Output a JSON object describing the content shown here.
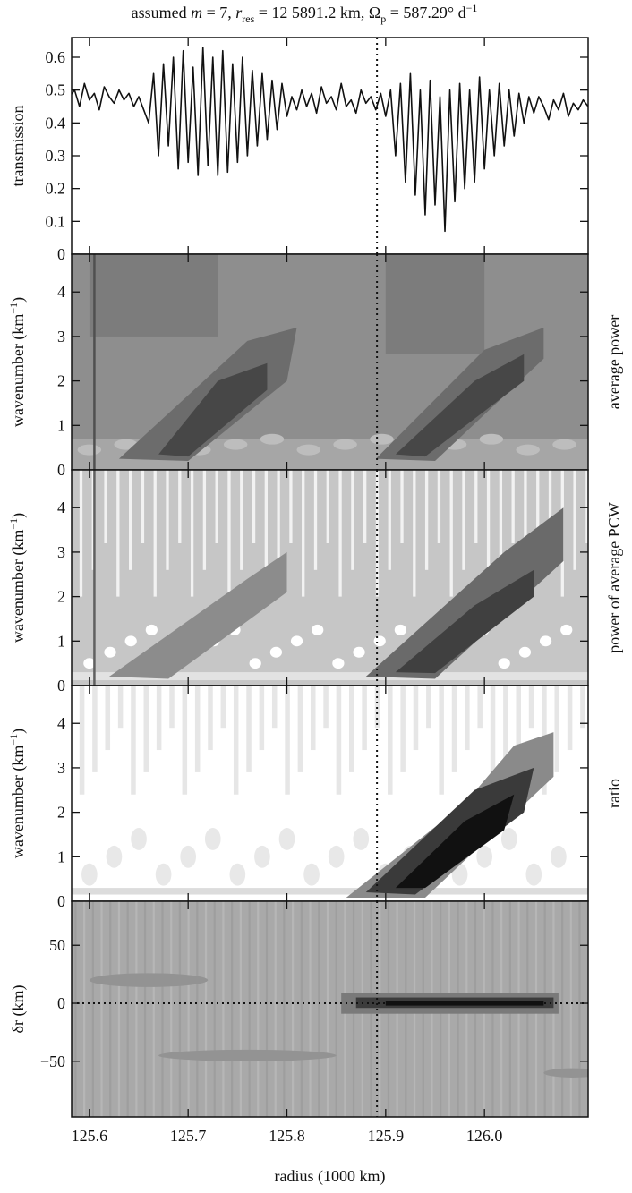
{
  "title": [
    "assumed ",
    "m",
    " = 7, ",
    "r",
    "res",
    " = 12 5891.2 km, Ω",
    "p",
    " = 587.29° d",
    "−1"
  ],
  "chart_data": [
    {
      "type": "line",
      "ylabel": "transmission",
      "ylim": [
        0,
        0.66
      ],
      "yticks": [
        0,
        0.1,
        0.2,
        0.3,
        0.4,
        0.5,
        0.6
      ],
      "vline": 125.8912,
      "color": "#111111",
      "x": [
        125.58,
        125.585,
        125.59,
        125.595,
        125.6,
        125.605,
        125.61,
        125.615,
        125.62,
        125.625,
        125.63,
        125.635,
        125.64,
        125.645,
        125.65,
        125.655,
        125.66,
        125.665,
        125.67,
        125.675,
        125.68,
        125.685,
        125.69,
        125.695,
        125.7,
        125.705,
        125.71,
        125.715,
        125.72,
        125.725,
        125.73,
        125.735,
        125.74,
        125.745,
        125.75,
        125.755,
        125.76,
        125.765,
        125.77,
        125.775,
        125.78,
        125.785,
        125.79,
        125.795,
        125.8,
        125.805,
        125.81,
        125.815,
        125.82,
        125.825,
        125.83,
        125.835,
        125.84,
        125.845,
        125.85,
        125.855,
        125.86,
        125.865,
        125.87,
        125.875,
        125.88,
        125.885,
        125.89,
        125.895,
        125.9,
        125.905,
        125.91,
        125.915,
        125.92,
        125.925,
        125.93,
        125.935,
        125.94,
        125.945,
        125.95,
        125.955,
        125.96,
        125.965,
        125.97,
        125.975,
        125.98,
        125.985,
        125.99,
        125.995,
        126.0,
        126.005,
        126.01,
        126.015,
        126.02,
        126.025,
        126.03,
        126.035,
        126.04,
        126.045,
        126.05,
        126.055,
        126.06,
        126.065,
        126.07,
        126.075,
        126.08,
        126.085,
        126.09,
        126.095,
        126.1,
        126.105
      ],
      "values": [
        0.48,
        0.5,
        0.45,
        0.52,
        0.47,
        0.49,
        0.44,
        0.51,
        0.48,
        0.46,
        0.5,
        0.47,
        0.49,
        0.45,
        0.48,
        0.44,
        0.4,
        0.55,
        0.3,
        0.58,
        0.33,
        0.6,
        0.26,
        0.62,
        0.28,
        0.57,
        0.24,
        0.63,
        0.27,
        0.6,
        0.24,
        0.62,
        0.25,
        0.58,
        0.28,
        0.6,
        0.3,
        0.56,
        0.33,
        0.55,
        0.35,
        0.53,
        0.38,
        0.52,
        0.42,
        0.48,
        0.44,
        0.5,
        0.45,
        0.49,
        0.43,
        0.51,
        0.46,
        0.48,
        0.44,
        0.52,
        0.45,
        0.47,
        0.43,
        0.5,
        0.46,
        0.48,
        0.44,
        0.49,
        0.42,
        0.5,
        0.3,
        0.52,
        0.22,
        0.55,
        0.18,
        0.5,
        0.12,
        0.53,
        0.15,
        0.48,
        0.07,
        0.5,
        0.16,
        0.52,
        0.2,
        0.5,
        0.22,
        0.54,
        0.26,
        0.5,
        0.3,
        0.52,
        0.33,
        0.5,
        0.36,
        0.49,
        0.4,
        0.48,
        0.43,
        0.48,
        0.45,
        0.41,
        0.47,
        0.44,
        0.49,
        0.42,
        0.46,
        0.44,
        0.47,
        0.45
      ]
    },
    {
      "type": "heatmap",
      "ylabel": [
        "wavenumber (km",
        "−1",
        ")"
      ],
      "right_label": "average power",
      "ylim": [
        0,
        4.85
      ],
      "yticks": [
        0,
        1,
        2,
        3,
        4
      ],
      "vline": 125.8912
    },
    {
      "type": "heatmap",
      "ylabel": [
        "wavenumber (km",
        "−1",
        ")"
      ],
      "right_label": "power of average PCW",
      "ylim": [
        0,
        4.85
      ],
      "yticks": [
        0,
        1,
        2,
        3,
        4
      ],
      "vline": 125.8912
    },
    {
      "type": "heatmap",
      "ylabel": [
        "wavenumber (km",
        "−1",
        ")"
      ],
      "right_label": "ratio",
      "ylim": [
        0,
        4.85
      ],
      "yticks": [
        0,
        1,
        2,
        3,
        4
      ],
      "vline": 125.8912
    },
    {
      "type": "heatmap",
      "ylabel": "δr (km)",
      "ylim": [
        -98,
        88
      ],
      "yticks": [
        {
          "value": -50,
          "label": "−50"
        },
        0,
        50
      ],
      "vline": 125.8912,
      "hline": 0,
      "xlabel": "radius (1000 km)",
      "xlim": [
        125.582,
        126.105
      ],
      "xticks": [
        125.6,
        125.7,
        125.8,
        125.9,
        {
          "value": 126,
          "label": "126.0"
        }
      ]
    }
  ]
}
